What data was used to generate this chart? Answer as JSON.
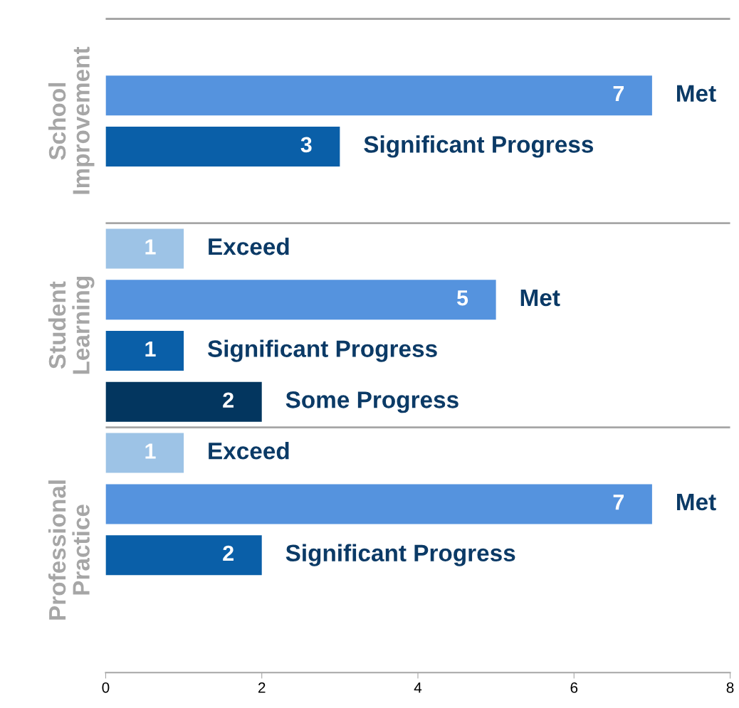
{
  "chart_data": {
    "type": "bar",
    "orientation": "horizontal",
    "categories": [
      null,
      "Met",
      "Significant Progress",
      null,
      "Exceed",
      "Met",
      "Significant Progress",
      "Some Progress",
      "Exceed",
      "Met",
      "Significant Progress",
      null
    ],
    "values": [
      null,
      7,
      3,
      null,
      1,
      5,
      1,
      2,
      1,
      7,
      2,
      null
    ],
    "colors": [
      "#5593de",
      "#5593de",
      "#0a5fa8",
      "#5593de",
      "#9dc3e6",
      "#5593de",
      "#0a5fa8",
      "#03365f",
      "#9dc3e6",
      "#5593de",
      "#0a5fa8",
      "#5593de"
    ],
    "data_labels": true,
    "xlim": [
      0,
      8
    ],
    "xticks": [
      0,
      2,
      4,
      6,
      8
    ],
    "tick_labels": "x",
    "grid": false,
    "legend": false,
    "annotations": [
      "School Improvement",
      "Student Learning",
      "Professional Practice"
    ]
  }
}
